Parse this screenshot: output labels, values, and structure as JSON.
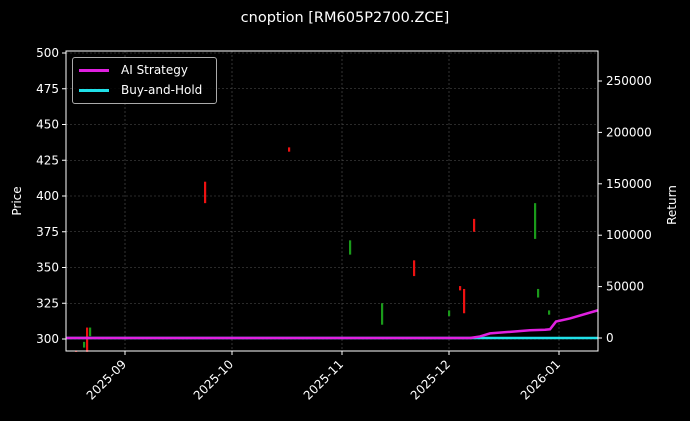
{
  "title": "cnoption [RM605P2700.ZCE]",
  "chart_data": {
    "type": "candlestick+line",
    "title": "cnoption [RM605P2700.ZCE]",
    "xlabel": "",
    "ylabel": "Price",
    "y2label": "Return",
    "ylim": [
      290,
      501
    ],
    "y2lim": [
      -12000,
      275000
    ],
    "yticks": [
      300,
      325,
      350,
      375,
      400,
      425,
      450,
      475,
      500
    ],
    "y2ticks": [
      0,
      50000,
      100000,
      150000,
      200000,
      250000
    ],
    "xticks": [
      "2025-09",
      "2025-10",
      "2025-11",
      "2025-12",
      "2026-01"
    ],
    "grid": true,
    "legend_position": "upper left",
    "legend": [
      "AI Strategy",
      "Buy-and-Hold"
    ],
    "colors": {
      "up": "#1a9a1a",
      "down": "#ee1111",
      "ai": "#e020e0",
      "bh": "#20e0e8",
      "bg": "#000000"
    },
    "candles": [
      {
        "x": 76,
        "low": 291,
        "high": 292,
        "dir": "down"
      },
      {
        "x": 84,
        "low": 294,
        "high": 298,
        "dir": "up"
      },
      {
        "x": 87,
        "low": 291,
        "high": 308,
        "dir": "down"
      },
      {
        "x": 90,
        "low": 302,
        "high": 308,
        "dir": "up"
      },
      {
        "x": 205,
        "low": 395,
        "high": 410,
        "dir": "down"
      },
      {
        "x": 289,
        "low": 431,
        "high": 434,
        "dir": "down"
      },
      {
        "x": 350,
        "low": 359,
        "high": 369,
        "dir": "up"
      },
      {
        "x": 382,
        "low": 310,
        "high": 325,
        "dir": "up"
      },
      {
        "x": 414,
        "low": 344,
        "high": 355,
        "dir": "down"
      },
      {
        "x": 449,
        "low": 316,
        "high": 320,
        "dir": "up"
      },
      {
        "x": 460,
        "low": 334,
        "high": 337,
        "dir": "down"
      },
      {
        "x": 464,
        "low": 318,
        "high": 335,
        "dir": "down"
      },
      {
        "x": 474,
        "low": 375,
        "high": 384,
        "dir": "down"
      },
      {
        "x": 535,
        "low": 370,
        "high": 395,
        "dir": "up"
      },
      {
        "x": 538,
        "low": 329,
        "high": 335,
        "dir": "up"
      },
      {
        "x": 549,
        "low": 317,
        "high": 320,
        "dir": "up"
      }
    ],
    "series": [
      {
        "name": "AI Strategy",
        "points": [
          [
            66,
            0
          ],
          [
            470,
            0
          ],
          [
            480,
            1500
          ],
          [
            490,
            4500
          ],
          [
            510,
            6000
          ],
          [
            530,
            7500
          ],
          [
            545,
            8000
          ],
          [
            550,
            8500
          ],
          [
            556,
            16000
          ],
          [
            570,
            19000
          ],
          [
            598,
            27000
          ]
        ]
      },
      {
        "name": "Buy-and-Hold",
        "points": [
          [
            66,
            0
          ],
          [
            598,
            0
          ]
        ]
      }
    ]
  }
}
